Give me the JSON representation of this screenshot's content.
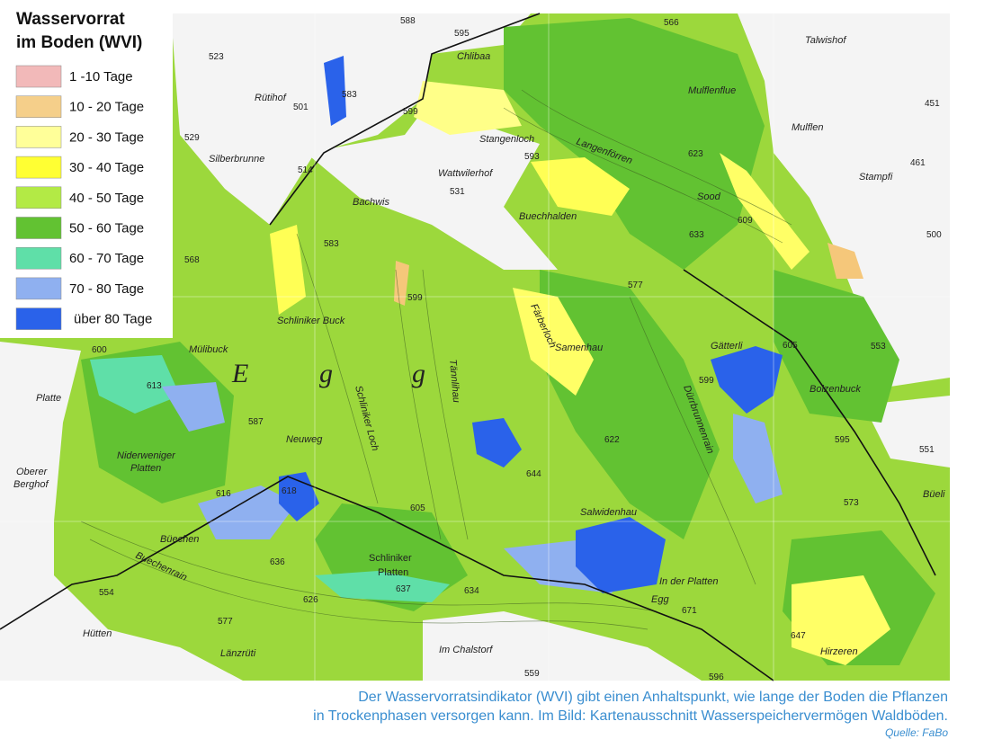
{
  "legend": {
    "title": [
      "Wasservorrat",
      "im Boden (WVI)"
    ],
    "items": [
      {
        "label": "1 -10 Tage",
        "color": "#f2b9b9"
      },
      {
        "label": "10 - 20 Tage",
        "color": "#f5cf8a"
      },
      {
        "label": "20 - 30 Tage",
        "color": "#ffff99"
      },
      {
        "label": "30 - 40 Tage",
        "color": "#ffff33"
      },
      {
        "label": "40 - 50 Tage",
        "color": "#b3ea45"
      },
      {
        "label": "50 - 60 Tage",
        "color": "#62c232"
      },
      {
        "label": "60 - 70 Tage",
        "color": "#5fdfa8"
      },
      {
        "label": "70 - 80 Tage",
        "color": "#8fb0f0"
      },
      {
        "label": "über 80 Tage",
        "color": "#2a62ea"
      }
    ]
  },
  "map": {
    "labels": [
      "Rütihof",
      "Silberbrunne",
      "Bachwis",
      "Wattwilerhof",
      "Stangenloch",
      "Chlibaa",
      "Langenförren",
      "Buechhalden",
      "Mulflenflue",
      "Mulflen",
      "Talwishof",
      "Stampfi",
      "Sood",
      "Schliniker Buck",
      "Mülibuck",
      "Samenhau",
      "Gätterli",
      "Bolzenbuck",
      "Platte",
      "Niderweniger",
      "Platten",
      "Oberer",
      "Berghof",
      "Neuweg",
      "Büechen",
      "Schliniker",
      "Platten",
      "Salwidenhau",
      "In der Platten",
      "Egg",
      "Hirzeren",
      "Hütten",
      "Länzrüti",
      "Im Chalstorf",
      "Büeli",
      "Schliniker Loch",
      "Tännlihau",
      "Färberloch",
      "Dürrbrunnenrain",
      "Buechenrain",
      "E",
      "g",
      "g"
    ],
    "elevations": [
      "588",
      "595",
      "566",
      "523",
      "501",
      "529",
      "514",
      "531",
      "593",
      "583",
      "599",
      "623",
      "633",
      "609",
      "577",
      "451",
      "461",
      "500",
      "568",
      "600",
      "613",
      "616",
      "618",
      "587",
      "605",
      "622",
      "644",
      "636",
      "626",
      "637",
      "634",
      "671",
      "647",
      "554",
      "577",
      "559",
      "596",
      "551",
      "573",
      "553",
      "599",
      "583",
      "599",
      "605",
      "595"
    ]
  },
  "caption": {
    "lines": [
      "Der Wasservorratsindikator (WVI) gibt einen Anhaltspunkt, wie lange der Boden die Pflanzen",
      "in Trockenphasen versorgen kann. Im Bild: Kartenausschnitt Wasserspeichervermögen Waldböden."
    ],
    "source": "Quelle: FaBo"
  }
}
